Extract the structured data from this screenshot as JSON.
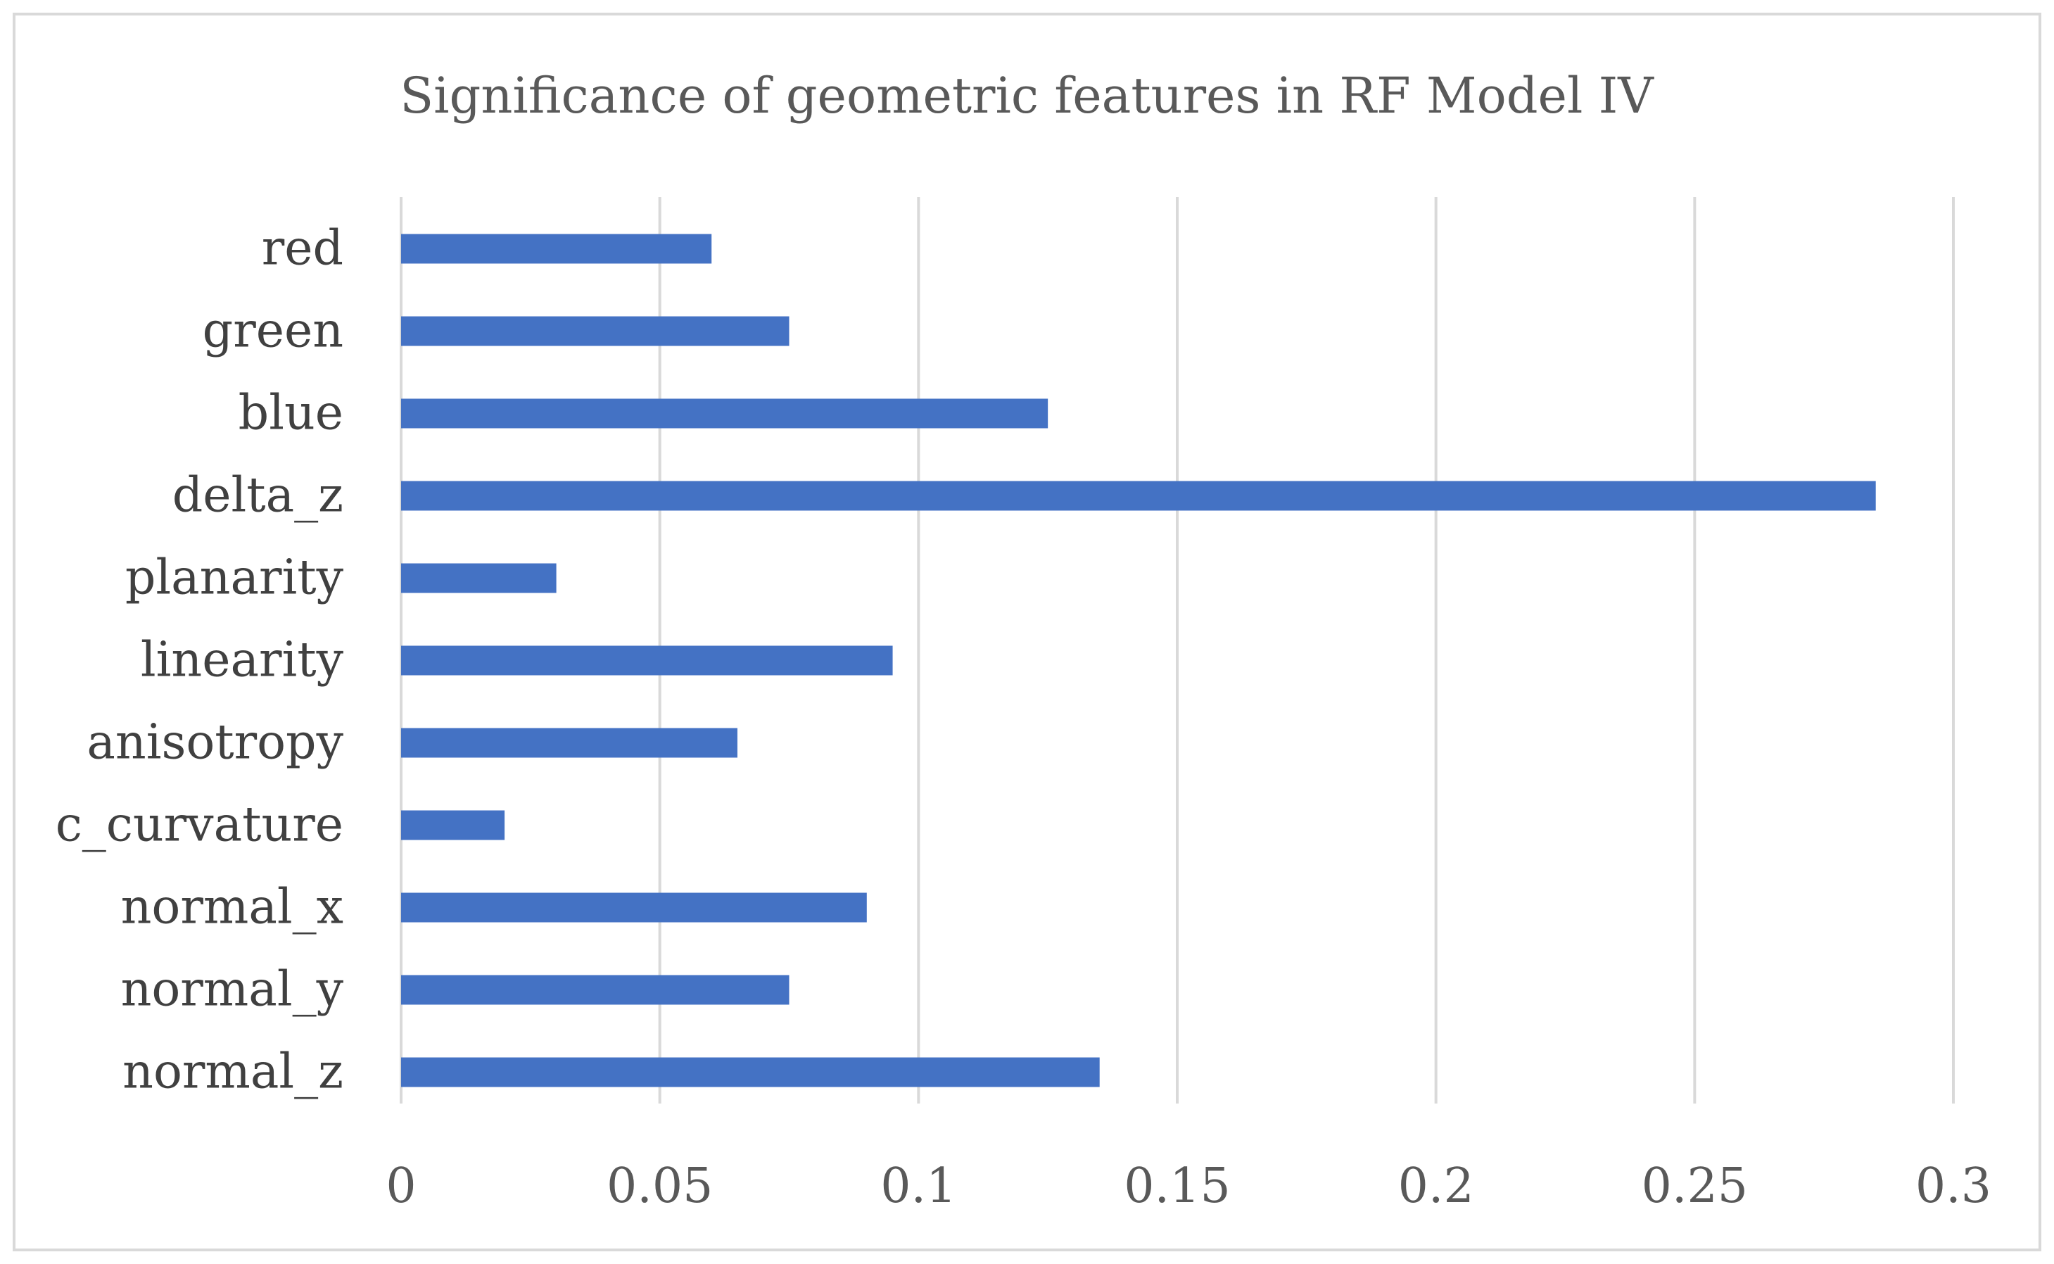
{
  "chart_data": {
    "type": "bar",
    "orientation": "horizontal",
    "title": "Significance of geometric features in RF Model IV",
    "categories": [
      "red",
      "green",
      "blue",
      "delta_z",
      "planarity",
      "linearity",
      "anisotropy",
      "c_curvature",
      "normal_x",
      "normal_y",
      "normal_z"
    ],
    "values": [
      0.06,
      0.075,
      0.125,
      0.285,
      0.03,
      0.095,
      0.065,
      0.02,
      0.09,
      0.075,
      0.135
    ],
    "xlim": [
      0,
      0.3
    ],
    "xticks": [
      0,
      0.05,
      0.1,
      0.15,
      0.2,
      0.25,
      0.3
    ],
    "xtick_labels": [
      "0",
      "0.05",
      "0.1",
      "0.15",
      "0.2",
      "0.25",
      "0.3"
    ],
    "xlabel": "",
    "ylabel": "",
    "grid": true,
    "bar_color": "#4472c4",
    "grid_color": "#d9d9d9"
  }
}
